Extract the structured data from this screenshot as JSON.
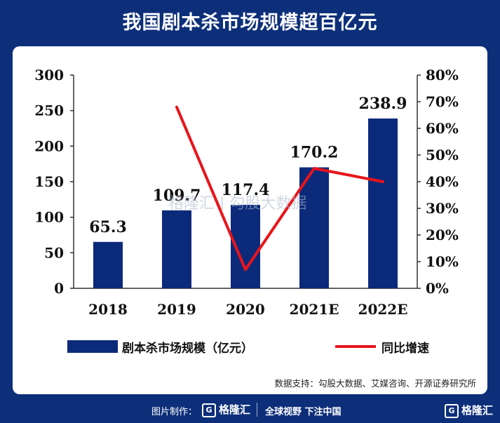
{
  "title": "我国剧本杀市场规模超百亿元",
  "legend": {
    "bar_label": "剧本杀市场规模（亿元）",
    "line_label": "同比增速"
  },
  "source": "数据支持：勾股大数据、艾媒咨询、开源证券研究所",
  "watermark": "格隆汇 | 勾股大数据",
  "footer": {
    "credit": "图片制作：",
    "logo": "格隆汇",
    "slogan": "全球视野 下注中国",
    "corner_logo": "格隆汇"
  },
  "chart_data": {
    "type": "bar",
    "categories": [
      "2018",
      "2019",
      "2020",
      "2021E",
      "2022E"
    ],
    "series": [
      {
        "name": "剧本杀市场规模（亿元）",
        "type": "bar",
        "axis": "left",
        "values": [
          65.3,
          109.7,
          117.4,
          170.2,
          238.9
        ],
        "labels": [
          "65.3",
          "109.7",
          "117.4",
          "170.2",
          "238.9"
        ],
        "color": "#0c2a7a"
      },
      {
        "name": "同比增速",
        "type": "line",
        "axis": "right",
        "values": [
          null,
          68,
          7,
          45,
          40
        ],
        "color": "#e8141b"
      }
    ],
    "y_left": {
      "min": 0,
      "max": 300,
      "ticks": [
        "0",
        "50",
        "100",
        "150",
        "200",
        "250",
        "300"
      ]
    },
    "y_right": {
      "min": 0,
      "max": 80,
      "ticks": [
        "0%",
        "10%",
        "20%",
        "30%",
        "40%",
        "50%",
        "60%",
        "70%",
        "80%"
      ]
    },
    "legend_position": "bottom",
    "grid": false
  }
}
